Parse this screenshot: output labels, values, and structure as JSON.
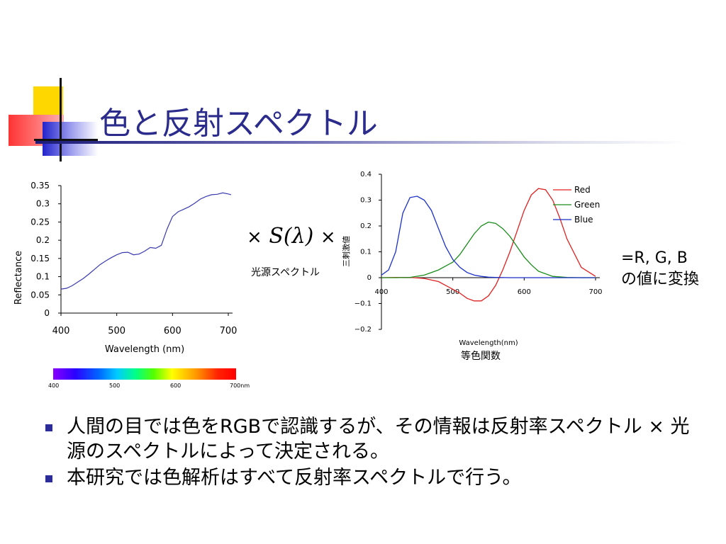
{
  "slide": {
    "title": "色と反射スペクトル",
    "operator_times": "×",
    "illuminant_symbol": "S(λ)",
    "illuminant_label": "光源スペクトル",
    "cmf_caption": "等色関数",
    "result_line1": "=R, G, B",
    "result_line2": "の値に変換",
    "bullets": [
      "人間の目では色をRGBで認識するが、その情報は反射率スペクトル × 光源のスペクトルによって決定される。",
      "本研究では色解析はすべて反射率スペクトルで行う。"
    ],
    "spectrum_bar": {
      "ticks": [
        "400",
        "500",
        "600",
        "700nm"
      ]
    },
    "colors": {
      "title": "#2b2b8c",
      "bullet": "#2b2b9a",
      "reflectance_line": "#3a3ab0",
      "red": "#e02020",
      "green": "#1a8c1a",
      "blue": "#1a2fc8"
    }
  },
  "chart_data": [
    {
      "type": "line",
      "xlabel": "Wavelength (nm)",
      "ylabel": "Reflectance",
      "xlim": [
        400,
        700
      ],
      "ylim": [
        0,
        0.35
      ],
      "xticks": [
        "400",
        "500",
        "600",
        "700"
      ],
      "yticks": [
        "0",
        "0.05",
        "0.1",
        "0.15",
        "0.2",
        "0.25",
        "0.3",
        "0.35"
      ],
      "grid": false,
      "series": [
        {
          "x": [
            400,
            410,
            420,
            430,
            440,
            450,
            460,
            470,
            480,
            490,
            500,
            510,
            520,
            530,
            540,
            550,
            560,
            570,
            580,
            590,
            600,
            610,
            620,
            630,
            640,
            650,
            660,
            670,
            680,
            690,
            700,
            705
          ],
          "values": [
            0.066,
            0.068,
            0.075,
            0.085,
            0.095,
            0.107,
            0.12,
            0.133,
            0.143,
            0.152,
            0.16,
            0.166,
            0.167,
            0.16,
            0.162,
            0.17,
            0.18,
            0.178,
            0.186,
            0.23,
            0.265,
            0.278,
            0.285,
            0.292,
            0.302,
            0.313,
            0.32,
            0.325,
            0.326,
            0.33,
            0.327,
            0.325
          ]
        }
      ]
    },
    {
      "type": "line",
      "xlabel": "Wavelength(nm)",
      "ylabel": "三刺激値",
      "xlim": [
        400,
        700
      ],
      "ylim": [
        -0.2,
        0.4
      ],
      "xticks": [
        "400",
        "500",
        "600",
        "700"
      ],
      "yticks": [
        "−0.2",
        "−0.1",
        "0",
        "0.1",
        "0.2",
        "0.3",
        "0.4"
      ],
      "grid": false,
      "legend": "top-right",
      "series": [
        {
          "name": "Red",
          "x": [
            400,
            420,
            440,
            460,
            480,
            500,
            510,
            520,
            530,
            540,
            550,
            560,
            570,
            580,
            590,
            600,
            610,
            620,
            630,
            640,
            650,
            660,
            680,
            700
          ],
          "values": [
            0,
            0.001,
            0.001,
            -0.003,
            -0.015,
            -0.045,
            -0.06,
            -0.08,
            -0.09,
            -0.09,
            -0.07,
            -0.03,
            0.03,
            0.1,
            0.18,
            0.26,
            0.32,
            0.345,
            0.34,
            0.3,
            0.23,
            0.15,
            0.04,
            0.005
          ]
        },
        {
          "name": "Green",
          "x": [
            400,
            420,
            440,
            460,
            480,
            490,
            500,
            510,
            520,
            530,
            540,
            550,
            560,
            570,
            580,
            590,
            600,
            610,
            620,
            640,
            660,
            680,
            700
          ],
          "values": [
            0,
            0.0,
            0.001,
            0.01,
            0.03,
            0.045,
            0.06,
            0.09,
            0.13,
            0.17,
            0.2,
            0.215,
            0.21,
            0.19,
            0.16,
            0.12,
            0.08,
            0.05,
            0.025,
            0.005,
            0.001,
            0,
            0
          ]
        },
        {
          "name": "Blue",
          "x": [
            400,
            410,
            420,
            430,
            440,
            450,
            460,
            470,
            480,
            490,
            500,
            510,
            520,
            530,
            540,
            550,
            560,
            580,
            600,
            650,
            700
          ],
          "values": [
            0.01,
            0.03,
            0.1,
            0.25,
            0.31,
            0.315,
            0.3,
            0.26,
            0.19,
            0.12,
            0.07,
            0.04,
            0.02,
            0.01,
            0.005,
            0.002,
            0.001,
            0,
            0,
            0,
            0
          ]
        }
      ]
    }
  ]
}
